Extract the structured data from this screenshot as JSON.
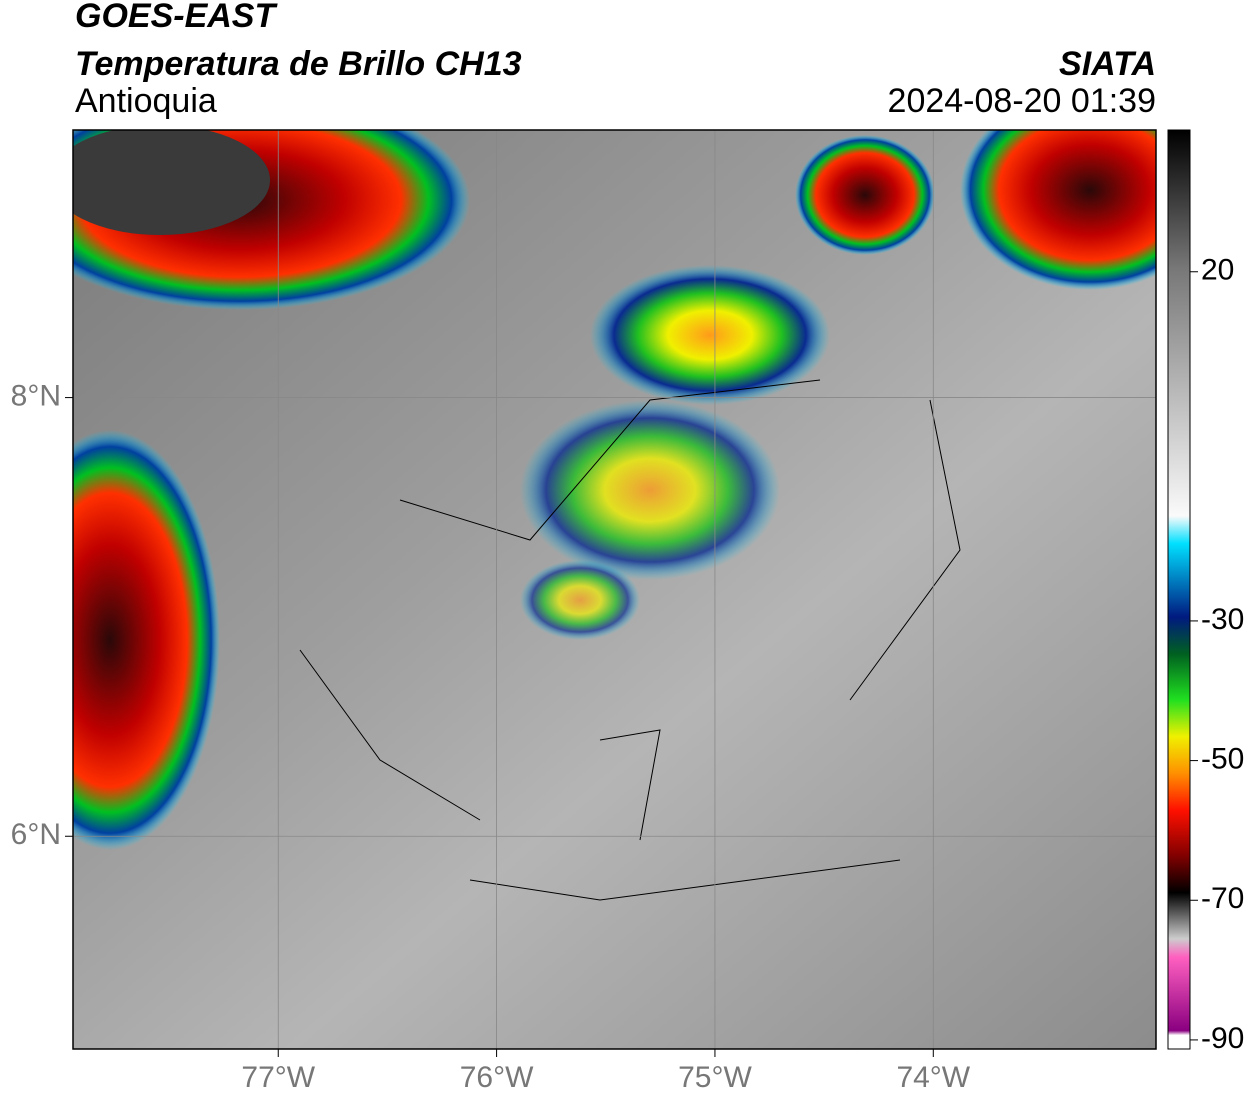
{
  "chart_data": {
    "type": "map",
    "title": "GOES-EAST",
    "subtitle": "Temperatura de Brillo CH13",
    "region": "Antioquia",
    "source": "SIATA",
    "datetime": "2024-08-20 01:39",
    "xlim": [
      -77.94,
      -72.98
    ],
    "ylim": [
      5.03,
      9.22
    ],
    "xticks": [
      {
        "value": -77,
        "label": "77°W"
      },
      {
        "value": -76,
        "label": "76°W"
      },
      {
        "value": -75,
        "label": "75°W"
      },
      {
        "value": -74,
        "label": "74°W"
      }
    ],
    "yticks": [
      {
        "value": 8,
        "label": "8°N"
      },
      {
        "value": 6,
        "label": "6°N"
      }
    ],
    "grid": true,
    "colorbar": {
      "lim": [
        -91.3,
        40.3
      ],
      "ticks": [
        20,
        -30,
        -50,
        -70,
        -90
      ]
    }
  }
}
